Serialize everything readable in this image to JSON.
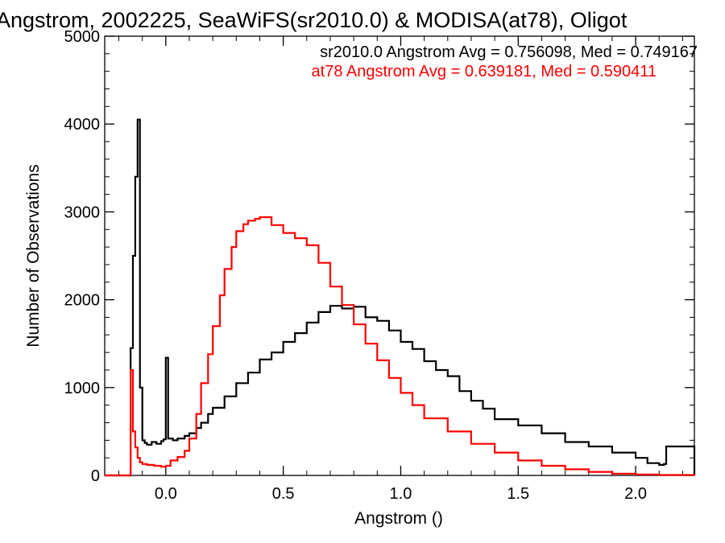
{
  "chart_data": {
    "type": "line",
    "title": "Angstrom, 2002225, SeaWiFS(sr2010.0) & MODISA(at78), Oligot",
    "xlabel": "Angstrom ()",
    "ylabel": "Number of Observations",
    "xlim": [
      -0.26,
      2.25
    ],
    "ylim": [
      0,
      5000
    ],
    "xticks": [
      {
        "value": 0.0,
        "label": "0.0"
      },
      {
        "value": 0.5,
        "label": "0.5"
      },
      {
        "value": 1.0,
        "label": "1.0"
      },
      {
        "value": 1.5,
        "label": "1.5"
      },
      {
        "value": 2.0,
        "label": "2.0"
      }
    ],
    "yticks": [
      {
        "value": 0,
        "label": "0"
      },
      {
        "value": 1000,
        "label": "1000"
      },
      {
        "value": 2000,
        "label": "2000"
      },
      {
        "value": 3000,
        "label": "3000"
      },
      {
        "value": 4000,
        "label": "4000"
      },
      {
        "value": 5000,
        "label": "5000"
      }
    ],
    "grid": false,
    "legend": "top-right",
    "annotations": [
      {
        "text": "sr2010.0 Angstrom Avg = 0.756098, Med = 0.749167",
        "color": "#000000"
      },
      {
        "text": "at78 Angstrom Avg = 0.639181, Med = 0.590411",
        "color": "#ff0000"
      }
    ],
    "series": [
      {
        "color": "#000000",
        "x": [
          -0.26,
          -0.16,
          -0.15,
          -0.14,
          -0.13,
          -0.12,
          -0.11,
          -0.1,
          -0.09,
          -0.08,
          -0.06,
          -0.04,
          -0.02,
          -0.01,
          0.0,
          0.01,
          0.03,
          0.05,
          0.08,
          0.1,
          0.13,
          0.15,
          0.18,
          0.2,
          0.25,
          0.3,
          0.35,
          0.4,
          0.45,
          0.5,
          0.55,
          0.6,
          0.65,
          0.7,
          0.75,
          0.8,
          0.85,
          0.9,
          0.95,
          1.0,
          1.05,
          1.1,
          1.15,
          1.2,
          1.25,
          1.3,
          1.35,
          1.4,
          1.5,
          1.6,
          1.7,
          1.8,
          1.9,
          2.0,
          2.05,
          2.1,
          2.12,
          2.13,
          2.25
        ],
        "values": [
          0,
          0,
          1450,
          2500,
          3400,
          4050,
          1000,
          400,
          370,
          350,
          380,
          360,
          390,
          410,
          1340,
          420,
          400,
          420,
          450,
          480,
          540,
          600,
          700,
          770,
          900,
          1050,
          1170,
          1320,
          1400,
          1520,
          1620,
          1740,
          1860,
          1930,
          1900,
          1920,
          1800,
          1760,
          1650,
          1520,
          1440,
          1300,
          1200,
          1130,
          960,
          850,
          760,
          640,
          570,
          480,
          380,
          330,
          260,
          200,
          140,
          120,
          130,
          330,
          0
        ]
      },
      {
        "color": "#ff0000",
        "x": [
          -0.26,
          -0.16,
          -0.15,
          -0.14,
          -0.13,
          -0.12,
          -0.11,
          -0.1,
          -0.08,
          -0.05,
          -0.02,
          0.0,
          0.02,
          0.05,
          0.08,
          0.1,
          0.13,
          0.15,
          0.18,
          0.2,
          0.23,
          0.25,
          0.28,
          0.3,
          0.33,
          0.35,
          0.38,
          0.4,
          0.45,
          0.5,
          0.55,
          0.6,
          0.65,
          0.7,
          0.75,
          0.8,
          0.85,
          0.9,
          0.95,
          1.0,
          1.05,
          1.1,
          1.2,
          1.3,
          1.4,
          1.5,
          1.6,
          1.7,
          1.8,
          1.9,
          2.0,
          2.1,
          2.25
        ],
        "values": [
          0,
          0,
          1200,
          500,
          320,
          200,
          150,
          130,
          120,
          110,
          100,
          110,
          170,
          210,
          280,
          420,
          700,
          1050,
          1380,
          1700,
          2050,
          2350,
          2600,
          2780,
          2860,
          2900,
          2920,
          2940,
          2850,
          2760,
          2700,
          2620,
          2420,
          2150,
          1940,
          1720,
          1500,
          1310,
          1110,
          940,
          800,
          650,
          500,
          360,
          260,
          170,
          110,
          70,
          40,
          20,
          10,
          5,
          0
        ]
      }
    ]
  }
}
